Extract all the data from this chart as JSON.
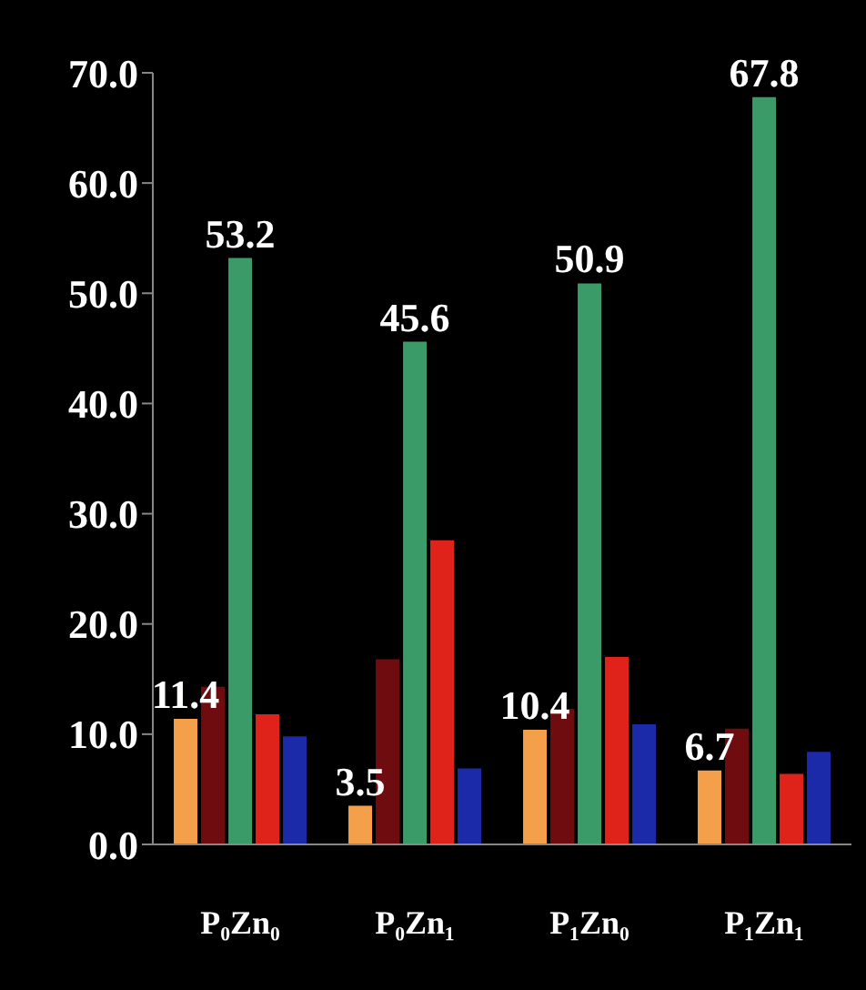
{
  "chart_data": {
    "type": "bar",
    "categories": [
      "P₀Zn₀",
      "P₀Zn₁",
      "P₁Zn₀",
      "P₁Zn₁"
    ],
    "series": [
      {
        "color": "#f4a04a",
        "values": [
          11.4,
          3.5,
          10.4,
          6.7
        ],
        "value_labels": [
          "11.4",
          "3.5",
          "10.4",
          "6.7"
        ]
      },
      {
        "color": "#6e0c10",
        "values": [
          14.3,
          16.8,
          12.3,
          10.5
        ]
      },
      {
        "color": "#3a9a68",
        "values": [
          53.2,
          45.6,
          50.9,
          67.8
        ],
        "value_labels": [
          "53.2",
          "45.6",
          "50.9",
          "67.8"
        ]
      },
      {
        "color": "#e0231a",
        "values": [
          11.8,
          27.6,
          17.0,
          6.4
        ]
      },
      {
        "color": "#1a2aa8",
        "values": [
          9.8,
          6.9,
          10.9,
          8.4
        ]
      }
    ],
    "ylim": [
      0,
      70
    ],
    "yticks": [
      {
        "value": 0,
        "label": "0.0"
      },
      {
        "value": 10,
        "label": "10.0"
      },
      {
        "value": 20,
        "label": "20.0"
      },
      {
        "value": 30,
        "label": "30.0"
      },
      {
        "value": 40,
        "label": "40.0"
      },
      {
        "value": 50,
        "label": "50.0"
      },
      {
        "value": 60,
        "label": "60.0"
      },
      {
        "value": 70,
        "label": "70.0"
      }
    ],
    "grid": false,
    "legend": false
  }
}
